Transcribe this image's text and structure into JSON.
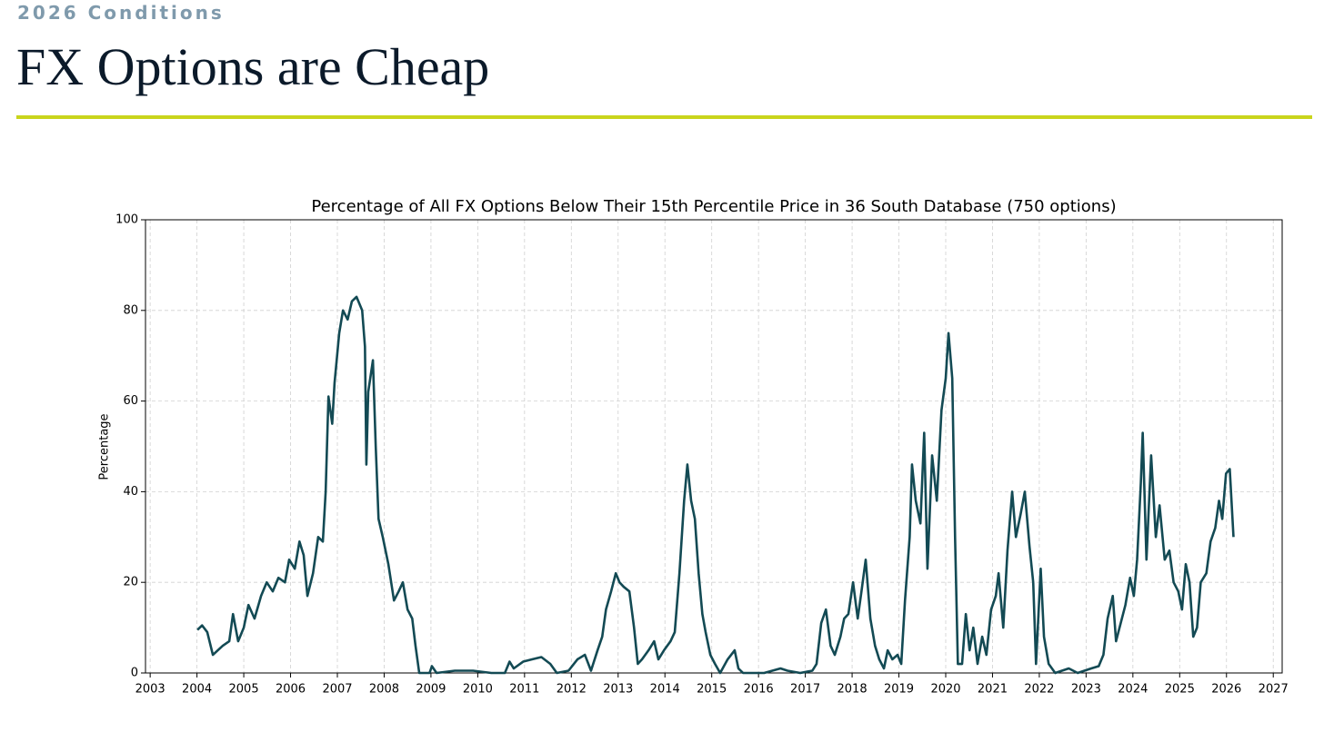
{
  "header": {
    "kicker": "2026 Conditions",
    "title": "FX Options are Cheap"
  },
  "chart_data": {
    "type": "line",
    "title": "Percentage of All FX Options Below Their 15th Percentile Price in 36 South Database (750 options)",
    "ylabel": "Percentage",
    "color": "#134a54",
    "grid": true,
    "xlim": [
      2002.9,
      2027.19
    ],
    "ylim": [
      0,
      100
    ],
    "xticks": [
      2003,
      2004,
      2005,
      2006,
      2007,
      2008,
      2009,
      2010,
      2011,
      2012,
      2013,
      2014,
      2015,
      2016,
      2017,
      2018,
      2019,
      2020,
      2021,
      2022,
      2023,
      2024,
      2025,
      2026,
      2027
    ],
    "yticks": [
      0,
      20,
      40,
      60,
      80,
      100
    ],
    "x": [
      2004.01,
      2004.11,
      2004.22,
      2004.34,
      2004.55,
      2004.69,
      2004.77,
      2004.88,
      2005.0,
      2005.1,
      2005.23,
      2005.37,
      2005.49,
      2005.62,
      2005.74,
      2005.88,
      2005.97,
      2006.09,
      2006.19,
      2006.28,
      2006.36,
      2006.48,
      2006.59,
      2006.69,
      2006.75,
      2006.81,
      2006.89,
      2006.94,
      2007.04,
      2007.12,
      2007.22,
      2007.31,
      2007.41,
      2007.53,
      2007.59,
      2007.62,
      2007.66,
      2007.76,
      2007.82,
      2007.88,
      2007.97,
      2008.09,
      2008.21,
      2008.31,
      2008.4,
      2008.5,
      2008.6,
      2008.67,
      2008.75,
      2008.97,
      2009.02,
      2009.12,
      2009.51,
      2009.9,
      2010.29,
      2010.58,
      2010.68,
      2010.77,
      2010.97,
      2011.16,
      2011.36,
      2011.55,
      2011.69,
      2011.94,
      2012.13,
      2012.29,
      2012.42,
      2012.56,
      2012.66,
      2012.74,
      2012.85,
      2012.95,
      2013.03,
      2013.12,
      2013.24,
      2013.34,
      2013.42,
      2013.51,
      2013.65,
      2013.77,
      2013.86,
      2013.98,
      2014.12,
      2014.21,
      2014.31,
      2014.41,
      2014.48,
      2014.56,
      2014.64,
      2014.72,
      2014.8,
      2014.87,
      2014.97,
      2015.07,
      2015.18,
      2015.34,
      2015.49,
      2015.57,
      2015.67,
      2016.12,
      2016.47,
      2016.62,
      2016.89,
      2017.15,
      2017.24,
      2017.34,
      2017.44,
      2017.54,
      2017.63,
      2017.75,
      2017.83,
      2017.92,
      2018.02,
      2018.12,
      2018.2,
      2018.29,
      2018.39,
      2018.49,
      2018.58,
      2018.68,
      2018.76,
      2018.86,
      2018.97,
      2019.05,
      2019.13,
      2019.23,
      2019.28,
      2019.36,
      2019.46,
      2019.54,
      2019.61,
      2019.71,
      2019.81,
      2019.91,
      2020.0,
      2020.06,
      2020.14,
      2020.2,
      2020.26,
      2020.35,
      2020.43,
      2020.51,
      2020.59,
      2020.68,
      2020.78,
      2020.87,
      2020.97,
      2021.07,
      2021.13,
      2021.23,
      2021.32,
      2021.42,
      2021.5,
      2021.6,
      2021.69,
      2021.79,
      2021.87,
      2021.93,
      2022.03,
      2022.1,
      2022.2,
      2022.34,
      2022.63,
      2022.82,
      2023.11,
      2023.27,
      2023.37,
      2023.46,
      2023.57,
      2023.64,
      2023.74,
      2023.84,
      2023.94,
      2024.02,
      2024.09,
      2024.17,
      2024.21,
      2024.29,
      2024.39,
      2024.49,
      2024.57,
      2024.68,
      2024.78,
      2024.87,
      2024.97,
      2025.05,
      2025.13,
      2025.21,
      2025.29,
      2025.37,
      2025.45,
      2025.57,
      2025.66,
      2025.76,
      2025.84,
      2025.91,
      2025.99,
      2026.07,
      2026.15
    ],
    "values": [
      9.5,
      10.5,
      9,
      4,
      6,
      7,
      13,
      7,
      10,
      15,
      12,
      17,
      20,
      18,
      21,
      20,
      25,
      23,
      29,
      26,
      17,
      22,
      30,
      29,
      40,
      61,
      55,
      64,
      75,
      80,
      78,
      82,
      83,
      80,
      72,
      46,
      62,
      69,
      50,
      34,
      30,
      24,
      16,
      18,
      20,
      14,
      12,
      6,
      0,
      0,
      1.5,
      0,
      0.5,
      0.5,
      0,
      0,
      2.5,
      1,
      2.5,
      3,
      3.5,
      2,
      0,
      0.5,
      3,
      4,
      0.5,
      5,
      8,
      14,
      18,
      22,
      20,
      19,
      18,
      10,
      2,
      3,
      5,
      7,
      3,
      5,
      7,
      9,
      22,
      38,
      46,
      38,
      34,
      22,
      13,
      9,
      4,
      2,
      0,
      3,
      5,
      1,
      0,
      0,
      1,
      0.5,
      0,
      0.5,
      2,
      11,
      14,
      6,
      4,
      8,
      12,
      13,
      20,
      12,
      18,
      25,
      12,
      6,
      3,
      1,
      5,
      3,
      4,
      2,
      16,
      30,
      46,
      38,
      33,
      53,
      23,
      48,
      38,
      58,
      65,
      75,
      65,
      30,
      2,
      2,
      13,
      5,
      10,
      2,
      8,
      4,
      14,
      17,
      22,
      10,
      27,
      40,
      30,
      35,
      40,
      28,
      20,
      2,
      23,
      8,
      2,
      0,
      1,
      0,
      1,
      1.5,
      4,
      12,
      17,
      7,
      11,
      15,
      21,
      17,
      25,
      42,
      53,
      25,
      48,
      30,
      37,
      25,
      27,
      20,
      18,
      14,
      24,
      20,
      8,
      10,
      20,
      22,
      29,
      32,
      38,
      34,
      44,
      45,
      30
    ]
  }
}
